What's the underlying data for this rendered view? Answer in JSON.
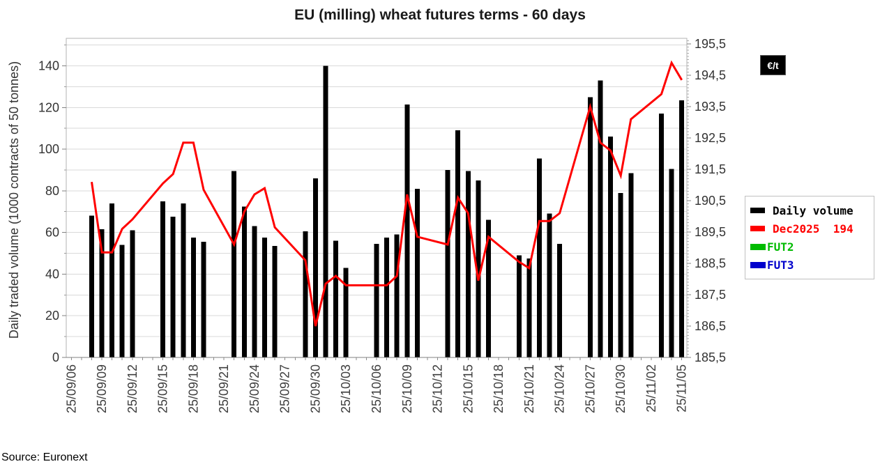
{
  "title": "EU (milling) wheat futures terms - 60 days",
  "y_axis_label": "Daily traded volume (1000 contracts of 50 tonnes)",
  "unit_badge": "€/t",
  "source": "Source: Euronext",
  "legend": {
    "items": [
      {
        "label": "Daily volume",
        "color": "#000000"
      },
      {
        "label": "Dec2025  194",
        "color": "#ff0000"
      },
      {
        "label": "FUT2",
        "color": "#00bb00"
      },
      {
        "label": "FUT3",
        "color": "#0000cc"
      }
    ]
  },
  "chart_data": {
    "type": "bar",
    "title": "EU (milling) wheat futures terms - 60 days",
    "xlabel": "",
    "ylabel_left": "Daily traded volume (1000 contracts of 50 tonnes)",
    "ylabel_right": "€/t",
    "grid": true,
    "legend_position": "right",
    "categories": [
      "25/09/06",
      "25/09/07",
      "25/09/08",
      "25/09/09",
      "25/09/10",
      "25/09/11",
      "25/09/12",
      "25/09/13",
      "25/09/14",
      "25/09/15",
      "25/09/16",
      "25/09/17",
      "25/09/18",
      "25/09/19",
      "25/09/20",
      "25/09/21",
      "25/09/22",
      "25/09/23",
      "25/09/24",
      "25/09/25",
      "25/09/26",
      "25/09/27",
      "25/09/28",
      "25/09/29",
      "25/09/30",
      "25/10/01",
      "25/10/02",
      "25/10/03",
      "25/10/04",
      "25/10/05",
      "25/10/06",
      "25/10/07",
      "25/10/08",
      "25/10/09",
      "25/10/10",
      "25/10/11",
      "25/10/12",
      "25/10/13",
      "25/10/14",
      "25/10/15",
      "25/10/16",
      "25/10/17",
      "25/10/18",
      "25/10/19",
      "25/10/20",
      "25/10/21",
      "25/10/22",
      "25/10/23",
      "25/10/24",
      "25/10/25",
      "25/10/26",
      "25/10/27",
      "25/10/28",
      "25/10/29",
      "25/10/30",
      "25/10/31",
      "25/11/01",
      "25/11/02",
      "25/11/03",
      "25/11/04",
      "25/11/05"
    ],
    "x_tick_labels": [
      "25/09/06",
      "25/09/09",
      "25/09/12",
      "25/09/15",
      "25/09/18",
      "25/09/21",
      "25/09/24",
      "25/09/27",
      "25/09/30",
      "25/10/03",
      "25/10/06",
      "25/10/09",
      "25/10/12",
      "25/10/15",
      "25/10/18",
      "25/10/21",
      "25/10/24",
      "25/10/27",
      "25/10/30",
      "25/11/02",
      "25/11/05"
    ],
    "series": [
      {
        "name": "Daily volume",
        "type": "bar",
        "axis": "left",
        "color": "#000000",
        "values": [
          0,
          0,
          68,
          61.5,
          74,
          54,
          61,
          0,
          0,
          75,
          67.5,
          74,
          57.5,
          55.5,
          0,
          0,
          89.5,
          72.5,
          63,
          57.5,
          53.5,
          0,
          0,
          60.5,
          86,
          140,
          56,
          43,
          0,
          0,
          54.5,
          57.5,
          59,
          121.5,
          81,
          0,
          0,
          90,
          109,
          89.5,
          85,
          66,
          0,
          0,
          49,
          47.5,
          95.5,
          69,
          54.5,
          0,
          0,
          125,
          133,
          106,
          79,
          88.5,
          0,
          0,
          117,
          90.5,
          123.5
        ]
      },
      {
        "name": "Dec2025",
        "type": "line",
        "axis": "right",
        "color": "#ff0000",
        "last_value_label": "194",
        "values": [
          null,
          null,
          191.1,
          188.85,
          188.85,
          189.6,
          189.9,
          null,
          null,
          191.05,
          191.35,
          192.35,
          192.35,
          190.85,
          null,
          null,
          189.1,
          190.15,
          190.7,
          190.9,
          189.65,
          null,
          null,
          188.6,
          186.5,
          187.85,
          188.1,
          187.8,
          null,
          null,
          187.8,
          187.8,
          188.1,
          190.7,
          189.35,
          null,
          null,
          189.1,
          190.6,
          190.1,
          187.95,
          189.35,
          null,
          null,
          188.55,
          188.35,
          189.85,
          189.85,
          190.1,
          null,
          null,
          193.5,
          192.35,
          192.1,
          191.3,
          193.1,
          null,
          null,
          193.9,
          194.9,
          194.35
        ]
      },
      {
        "name": "FUT2",
        "type": "line",
        "axis": "right",
        "color": "#00bb00",
        "values": []
      },
      {
        "name": "FUT3",
        "type": "line",
        "axis": "right",
        "color": "#0000cc",
        "values": []
      }
    ],
    "left_axis": {
      "min": 0,
      "max": 153.2,
      "ticks": [
        0,
        20,
        40,
        60,
        80,
        100,
        120,
        140
      ],
      "gridline_step": 10
    },
    "right_axis": {
      "min": 185.5,
      "max": 195.68,
      "tick_values": [
        185.5,
        186.5,
        187.5,
        188.5,
        189.5,
        190.5,
        191.5,
        192.5,
        193.5,
        194.5,
        195.5
      ],
      "tick_labels": [
        "185,5",
        "186,5",
        "187,5",
        "188,5",
        "189,5",
        "190,5",
        "191,5",
        "192,5",
        "193,5",
        "194,5",
        "195,5"
      ],
      "minor_tick_step": 0.1
    }
  }
}
